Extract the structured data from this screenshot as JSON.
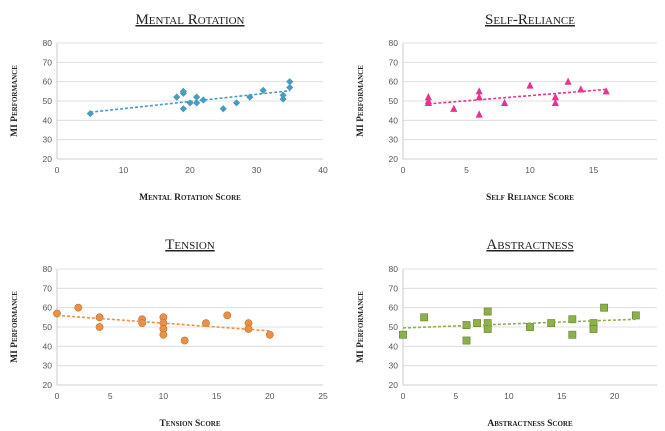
{
  "chart_data": [
    {
      "type": "scatter",
      "title": "Mental Rotation",
      "xlabel": "Mental Rotation Score",
      "ylabel": "MI Performance",
      "xlim": [
        0,
        40
      ],
      "ylim": [
        20,
        80
      ],
      "xticks": [
        0,
        10,
        20,
        30,
        40
      ],
      "yticks": [
        20,
        30,
        40,
        50,
        60,
        70,
        80
      ],
      "grid": "horizontal",
      "marker": "diamond",
      "color": "#4a9bc1",
      "trendline": [
        [
          5,
          44.2
        ],
        [
          35,
          55.3
        ]
      ],
      "points": [
        [
          5,
          43.5
        ],
        [
          18,
          52
        ],
        [
          19,
          54
        ],
        [
          19,
          46
        ],
        [
          20,
          49
        ],
        [
          21,
          52
        ],
        [
          21,
          49
        ],
        [
          22,
          50.5
        ],
        [
          25,
          46
        ],
        [
          27,
          49
        ],
        [
          29,
          52
        ],
        [
          31,
          55.5
        ],
        [
          34,
          53
        ],
        [
          34,
          51
        ],
        [
          35,
          57
        ],
        [
          35,
          60
        ],
        [
          19,
          55
        ]
      ]
    },
    {
      "type": "scatter",
      "title": "Self-Reliance",
      "xlabel": "Self Reliance Score",
      "ylabel": "MI Performance",
      "xlim": [
        0,
        20
      ],
      "ylim": [
        20,
        80
      ],
      "xticks": [
        0,
        5,
        10,
        15
      ],
      "yticks": [
        20,
        30,
        40,
        50,
        60,
        70,
        80
      ],
      "grid": "horizontal",
      "marker": "triangle",
      "color": "#e8338f",
      "trendline": [
        [
          2,
          48.5
        ],
        [
          16,
          56
        ]
      ],
      "points": [
        [
          2,
          52
        ],
        [
          2,
          50
        ],
        [
          2,
          49
        ],
        [
          4,
          46
        ],
        [
          6,
          55
        ],
        [
          6,
          52
        ],
        [
          6,
          43
        ],
        [
          8,
          49
        ],
        [
          10,
          58
        ],
        [
          12,
          52
        ],
        [
          12,
          49
        ],
        [
          13,
          60
        ],
        [
          14,
          56
        ],
        [
          16,
          55
        ]
      ]
    },
    {
      "type": "scatter",
      "title": "Tension",
      "xlabel": "Tension Score",
      "ylabel": "MI Performance",
      "xlim": [
        0,
        25
      ],
      "ylim": [
        20,
        80
      ],
      "xticks": [
        0,
        5,
        10,
        15,
        20,
        25
      ],
      "yticks": [
        20,
        30,
        40,
        50,
        60,
        70,
        80
      ],
      "grid": "horizontal",
      "marker": "circle",
      "color": "#e8914a",
      "trendline": [
        [
          0,
          56
        ],
        [
          20,
          48
        ]
      ],
      "points": [
        [
          0,
          57
        ],
        [
          2,
          60
        ],
        [
          4,
          55
        ],
        [
          4,
          50
        ],
        [
          8,
          54
        ],
        [
          8,
          52
        ],
        [
          10,
          55
        ],
        [
          10,
          52
        ],
        [
          10,
          49
        ],
        [
          10,
          46
        ],
        [
          12,
          43
        ],
        [
          14,
          52
        ],
        [
          16,
          56
        ],
        [
          18,
          52
        ],
        [
          18,
          49
        ],
        [
          20,
          46
        ]
      ]
    },
    {
      "type": "scatter",
      "title": "Abstractness",
      "xlabel": "Abstractness Score",
      "ylabel": "MI Performance",
      "xlim": [
        0,
        24
      ],
      "ylim": [
        20,
        80
      ],
      "xticks": [
        0,
        5,
        10,
        15,
        20
      ],
      "yticks": [
        20,
        30,
        40,
        50,
        60,
        70,
        80
      ],
      "grid": "horizontal",
      "marker": "square",
      "color": "#8db04a",
      "trendline": [
        [
          0,
          49.5
        ],
        [
          22,
          54
        ]
      ],
      "points": [
        [
          0,
          46
        ],
        [
          2,
          55
        ],
        [
          6,
          51
        ],
        [
          6,
          43
        ],
        [
          7,
          52
        ],
        [
          8,
          58
        ],
        [
          8,
          52
        ],
        [
          8,
          49
        ],
        [
          12,
          50
        ],
        [
          14,
          52
        ],
        [
          16,
          54
        ],
        [
          16,
          46
        ],
        [
          18,
          52
        ],
        [
          18,
          49
        ],
        [
          19,
          60
        ],
        [
          22,
          56
        ]
      ]
    }
  ]
}
